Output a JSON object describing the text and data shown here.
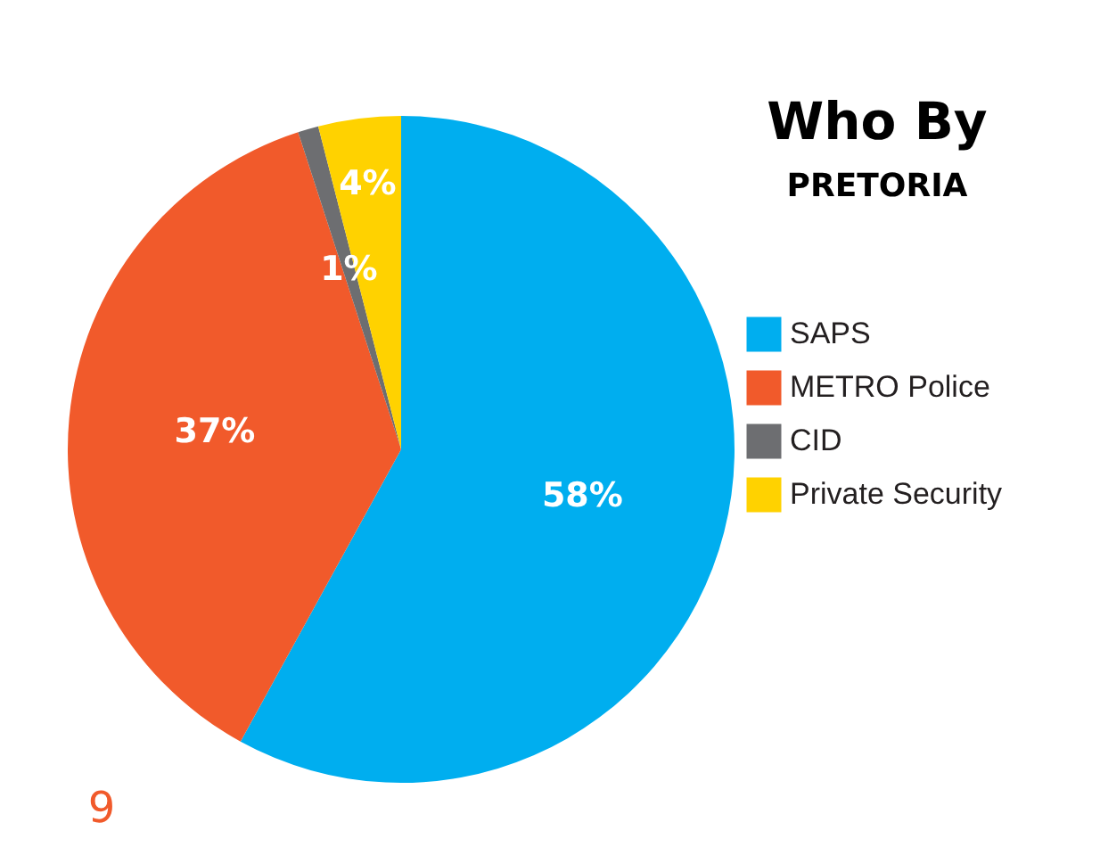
{
  "chart_data": {
    "type": "pie",
    "title": "Who By",
    "subtitle": "PRETORIA",
    "categories": [
      "SAPS",
      "METRO Police",
      "CID",
      "Private Security"
    ],
    "values": [
      58,
      37,
      1,
      4
    ],
    "colors": [
      "#00aeef",
      "#f15a2b",
      "#6d6e71",
      "#ffd200"
    ],
    "value_labels": [
      "58%",
      "37%",
      "1%",
      "4%"
    ],
    "legend": "right",
    "annotations": [
      "9"
    ]
  }
}
